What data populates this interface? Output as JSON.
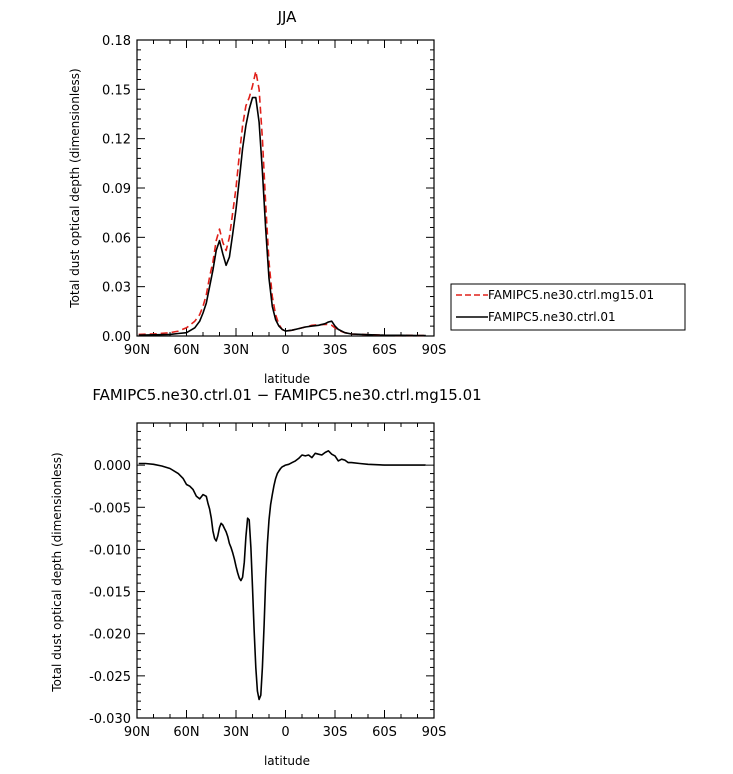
{
  "chart_data": [
    {
      "type": "line",
      "title": "JJA",
      "xlabel": "latitude",
      "ylabel": "Total dust optical depth (dimensionless)",
      "xlim": [
        90,
        -90
      ],
      "ylim": [
        0,
        0.18
      ],
      "xticks": [
        90,
        60,
        30,
        0,
        -30,
        -60,
        -90
      ],
      "xtick_labels": [
        "90N",
        "60N",
        "30N",
        "0",
        "30S",
        "60S",
        "90S"
      ],
      "yticks": [
        0,
        0.03,
        0.06,
        0.09,
        0.12,
        0.15,
        0.18
      ],
      "ytick_labels": [
        "0.00",
        "0.03",
        "0.06",
        "0.09",
        "0.12",
        "0.15",
        "0.18"
      ],
      "legend_position": "right, outside plot",
      "series": [
        {
          "name": "FAMIPC5.ne30.ctrl.mg15.01",
          "color": "#e0201a",
          "dash": "dashed",
          "x": [
            89,
            80,
            70,
            65,
            60,
            55,
            52,
            50,
            48,
            46,
            44,
            42,
            40,
            38,
            36,
            34,
            32,
            30,
            28,
            26,
            24,
            22,
            20,
            18,
            16,
            14,
            12,
            10,
            8,
            6,
            4,
            2,
            0,
            -4,
            -8,
            -12,
            -16,
            -20,
            -24,
            -26,
            -28,
            -30,
            -32,
            -36,
            -40,
            -50,
            -60,
            -70,
            -80,
            -85
          ],
          "y": [
            0.001,
            0.0012,
            0.002,
            0.003,
            0.005,
            0.009,
            0.013,
            0.018,
            0.025,
            0.036,
            0.045,
            0.058,
            0.065,
            0.057,
            0.052,
            0.06,
            0.075,
            0.09,
            0.11,
            0.128,
            0.14,
            0.145,
            0.152,
            0.161,
            0.15,
            0.12,
            0.08,
            0.045,
            0.024,
            0.013,
            0.007,
            0.004,
            0.003,
            0.0035,
            0.0045,
            0.0055,
            0.0065,
            0.0068,
            0.007,
            0.007,
            0.0065,
            0.005,
            0.0035,
            0.002,
            0.0012,
            0.0008,
            0.0005,
            0.0004,
            0.0003,
            0.0003
          ]
        },
        {
          "name": "FAMIPC5.ne30.ctrl.01",
          "color": "#000000",
          "dash": "solid",
          "x": [
            89,
            80,
            70,
            65,
            60,
            55,
            52,
            50,
            48,
            46,
            44,
            42,
            40,
            38,
            36,
            34,
            32,
            30,
            28,
            26,
            24,
            22,
            20,
            18,
            16,
            14,
            12,
            10,
            8,
            6,
            4,
            2,
            0,
            -4,
            -8,
            -12,
            -16,
            -20,
            -24,
            -26,
            -28,
            -30,
            -32,
            -36,
            -40,
            -50,
            -60,
            -70,
            -80,
            -85
          ],
          "y": [
            0.0005,
            0.0007,
            0.001,
            0.0015,
            0.002,
            0.005,
            0.009,
            0.014,
            0.02,
            0.03,
            0.04,
            0.052,
            0.058,
            0.05,
            0.043,
            0.048,
            0.062,
            0.077,
            0.095,
            0.114,
            0.128,
            0.138,
            0.145,
            0.145,
            0.13,
            0.1,
            0.065,
            0.035,
            0.018,
            0.01,
            0.006,
            0.004,
            0.003,
            0.0035,
            0.0045,
            0.0055,
            0.006,
            0.0065,
            0.0075,
            0.0085,
            0.009,
            0.006,
            0.004,
            0.002,
            0.0012,
            0.0008,
            0.0005,
            0.0004,
            0.0003,
            0.0003
          ]
        }
      ]
    },
    {
      "type": "line",
      "title": "FAMIPC5.ne30.ctrl.01 − FAMIPC5.ne30.ctrl.mg15.01",
      "xlabel": "latitude",
      "ylabel": "Total dust optical depth (dimensionless)",
      "xlim": [
        90,
        -90
      ],
      "ylim": [
        -0.03,
        0.005
      ],
      "xticks": [
        90,
        60,
        30,
        0,
        -30,
        -60,
        -90
      ],
      "xtick_labels": [
        "90N",
        "60N",
        "30N",
        "0",
        "30S",
        "60S",
        "90S"
      ],
      "yticks": [
        0,
        -0.005,
        -0.01,
        -0.015,
        -0.02,
        -0.025,
        -0.03
      ],
      "ytick_labels": [
        "0.000",
        "-0.005",
        "-0.010",
        "-0.015",
        "-0.020",
        "-0.025",
        "-0.030"
      ],
      "series": [
        {
          "color": "#000000",
          "dash": "solid",
          "x": [
            89,
            85,
            80,
            75,
            70,
            65,
            62,
            60,
            58,
            56,
            54,
            52,
            50,
            48,
            47,
            46,
            45,
            44,
            43,
            42,
            41,
            40,
            39,
            38,
            37,
            36,
            35,
            34,
            33,
            32,
            31,
            30,
            29,
            28,
            27,
            26,
            25,
            24,
            23,
            22,
            21,
            20,
            19,
            18,
            17,
            16,
            15,
            14,
            13,
            12,
            11,
            10,
            9,
            8,
            7,
            6,
            5,
            4,
            3,
            2,
            1,
            0,
            -2,
            -4,
            -6,
            -8,
            -10,
            -12,
            -14,
            -16,
            -18,
            -20,
            -22,
            -24,
            -26,
            -28,
            -30,
            -32,
            -34,
            -36,
            -38,
            -40,
            -45,
            -50,
            -60,
            -70,
            -80,
            -85
          ],
          "y": [
            0.0002,
            0.0002,
            0.0001,
            -0.0001,
            -0.0004,
            -0.001,
            -0.0016,
            -0.0023,
            -0.0025,
            -0.0029,
            -0.0037,
            -0.004,
            -0.0035,
            -0.0037,
            -0.0045,
            -0.0052,
            -0.0063,
            -0.0078,
            -0.0087,
            -0.009,
            -0.0084,
            -0.0074,
            -0.0069,
            -0.0071,
            -0.0075,
            -0.0079,
            -0.0085,
            -0.0093,
            -0.0098,
            -0.0104,
            -0.0111,
            -0.012,
            -0.0128,
            -0.0134,
            -0.0137,
            -0.0133,
            -0.0115,
            -0.0085,
            -0.0063,
            -0.0065,
            -0.0098,
            -0.0145,
            -0.0195,
            -0.024,
            -0.0268,
            -0.0278,
            -0.0273,
            -0.024,
            -0.019,
            -0.0135,
            -0.0093,
            -0.0065,
            -0.0047,
            -0.0035,
            -0.0024,
            -0.0016,
            -0.001,
            -0.0007,
            -0.0004,
            -0.0002,
            -0.0001,
            0.0,
            0.0001,
            0.0003,
            0.0005,
            0.0008,
            0.0012,
            0.0011,
            0.0012,
            0.0009,
            0.0014,
            0.0013,
            0.0012,
            0.0015,
            0.0017,
            0.0013,
            0.0011,
            0.0005,
            0.0007,
            0.0006,
            0.0003,
            0.0003,
            0.0002,
            0.0001,
            0.0,
            0.0,
            0.0,
            0.0
          ]
        }
      ]
    }
  ]
}
